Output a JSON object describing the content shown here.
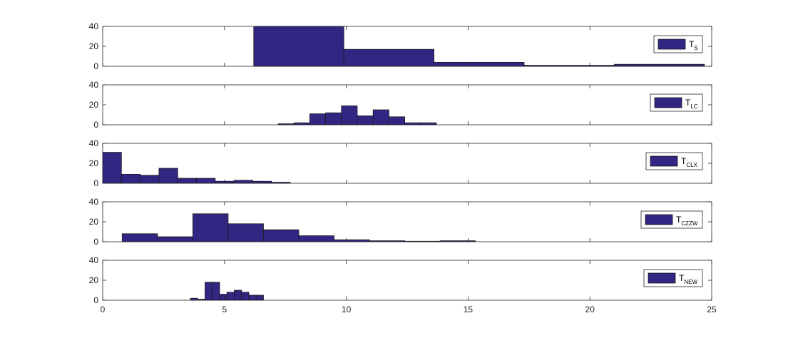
{
  "chart_data": {
    "type": "histogram",
    "xlim": [
      0,
      25
    ],
    "x_ticks": [
      0,
      5,
      10,
      15,
      20,
      25
    ],
    "x_tick_labels": [
      "0",
      "5",
      "10",
      "15",
      "20",
      "25"
    ],
    "bar_color": "#312783",
    "edge_color": "#1a1a1a",
    "legend_placement": "right",
    "panels": [
      {
        "legend": {
          "main": "T",
          "sub": "S"
        },
        "ylim": [
          0,
          40
        ],
        "y_ticks": [
          0,
          20,
          40
        ],
        "y_tick_labels": [
          "0",
          "20",
          "40"
        ],
        "bins": [
          {
            "x0": 6.2,
            "x1": 9.9,
            "y": 40
          },
          {
            "x0": 9.9,
            "x1": 13.6,
            "y": 17
          },
          {
            "x0": 13.6,
            "x1": 17.3,
            "y": 4
          },
          {
            "x0": 17.3,
            "x1": 21.0,
            "y": 1
          },
          {
            "x0": 21.0,
            "x1": 24.7,
            "y": 2
          }
        ]
      },
      {
        "legend": {
          "main": "T",
          "sub": "LC"
        },
        "ylim": [
          0,
          40
        ],
        "y_ticks": [
          0,
          20,
          40
        ],
        "y_tick_labels": [
          "0",
          "20",
          "40"
        ],
        "bins": [
          {
            "x0": 7.2,
            "x1": 7.85,
            "y": 1
          },
          {
            "x0": 7.85,
            "x1": 8.5,
            "y": 2
          },
          {
            "x0": 8.5,
            "x1": 9.15,
            "y": 11
          },
          {
            "x0": 9.15,
            "x1": 9.8,
            "y": 12
          },
          {
            "x0": 9.8,
            "x1": 10.45,
            "y": 19
          },
          {
            "x0": 10.45,
            "x1": 11.1,
            "y": 9
          },
          {
            "x0": 11.1,
            "x1": 11.75,
            "y": 15
          },
          {
            "x0": 11.75,
            "x1": 12.4,
            "y": 8
          },
          {
            "x0": 12.4,
            "x1": 13.05,
            "y": 2
          },
          {
            "x0": 13.05,
            "x1": 13.7,
            "y": 2
          }
        ]
      },
      {
        "legend": {
          "main": "T",
          "sub": "CLX"
        },
        "ylim": [
          0,
          40
        ],
        "y_ticks": [
          0,
          20,
          40
        ],
        "y_tick_labels": [
          "0",
          "20",
          "40"
        ],
        "bins": [
          {
            "x0": 0.0,
            "x1": 0.77,
            "y": 31
          },
          {
            "x0": 0.77,
            "x1": 1.54,
            "y": 9
          },
          {
            "x0": 1.54,
            "x1": 2.31,
            "y": 8
          },
          {
            "x0": 2.31,
            "x1": 3.08,
            "y": 15
          },
          {
            "x0": 3.08,
            "x1": 3.85,
            "y": 5
          },
          {
            "x0": 3.85,
            "x1": 4.62,
            "y": 5
          },
          {
            "x0": 4.62,
            "x1": 5.39,
            "y": 2
          },
          {
            "x0": 5.39,
            "x1": 6.16,
            "y": 3
          },
          {
            "x0": 6.16,
            "x1": 6.93,
            "y": 2
          },
          {
            "x0": 6.93,
            "x1": 7.7,
            "y": 1
          }
        ]
      },
      {
        "legend": {
          "main": "T",
          "sub": "CZZW"
        },
        "ylim": [
          0,
          40
        ],
        "y_ticks": [
          0,
          20,
          40
        ],
        "y_tick_labels": [
          "0",
          "20",
          "40"
        ],
        "bins": [
          {
            "x0": 0.8,
            "x1": 2.25,
            "y": 8
          },
          {
            "x0": 2.25,
            "x1": 3.7,
            "y": 5
          },
          {
            "x0": 3.7,
            "x1": 5.15,
            "y": 28
          },
          {
            "x0": 5.15,
            "x1": 6.6,
            "y": 18
          },
          {
            "x0": 6.6,
            "x1": 8.05,
            "y": 12
          },
          {
            "x0": 8.05,
            "x1": 9.5,
            "y": 6
          },
          {
            "x0": 9.5,
            "x1": 10.95,
            "y": 2
          },
          {
            "x0": 10.95,
            "x1": 12.4,
            "y": 1
          },
          {
            "x0": 12.4,
            "x1": 13.85,
            "y": 0.5
          },
          {
            "x0": 13.85,
            "x1": 15.3,
            "y": 1
          }
        ]
      },
      {
        "legend": {
          "main": "T",
          "sub": "NEW"
        },
        "ylim": [
          0,
          40
        ],
        "y_ticks": [
          0,
          20,
          40
        ],
        "y_tick_labels": [
          "0",
          "20",
          "40"
        ],
        "bins": [
          {
            "x0": 3.6,
            "x1": 3.9,
            "y": 2
          },
          {
            "x0": 3.9,
            "x1": 4.2,
            "y": 1
          },
          {
            "x0": 4.2,
            "x1": 4.5,
            "y": 18
          },
          {
            "x0": 4.5,
            "x1": 4.8,
            "y": 18
          },
          {
            "x0": 4.8,
            "x1": 5.1,
            "y": 6
          },
          {
            "x0": 5.1,
            "x1": 5.4,
            "y": 8
          },
          {
            "x0": 5.4,
            "x1": 5.7,
            "y": 10
          },
          {
            "x0": 5.7,
            "x1": 6.0,
            "y": 8
          },
          {
            "x0": 6.0,
            "x1": 6.3,
            "y": 5
          },
          {
            "x0": 6.3,
            "x1": 6.6,
            "y": 5
          }
        ]
      }
    ]
  }
}
